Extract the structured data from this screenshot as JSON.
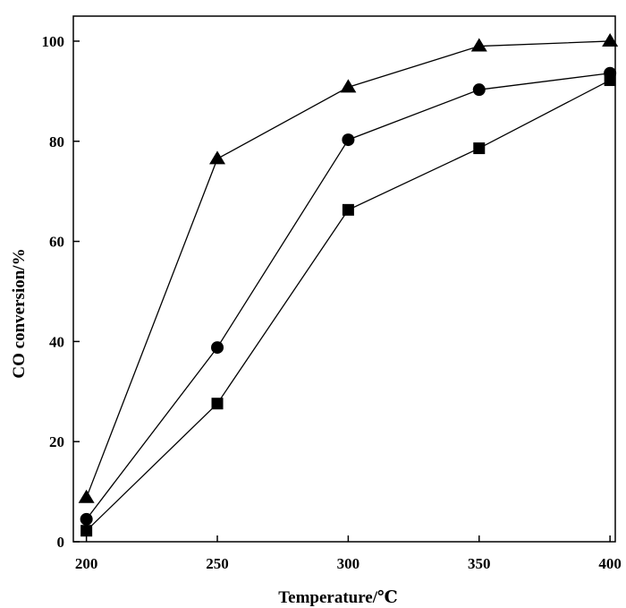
{
  "chart_data": {
    "type": "line",
    "title": "",
    "xlabel": "Temperature/℃",
    "ylabel": "CO conversion/%",
    "xlim": [
      195,
      402
    ],
    "ylim": [
      0,
      105
    ],
    "xticks": [
      200,
      250,
      300,
      350,
      400
    ],
    "yticks": [
      0,
      20,
      40,
      60,
      80,
      100
    ],
    "grid": false,
    "legend": "none",
    "colors": {
      "line": "#000000",
      "marker": "#000000"
    },
    "series": [
      {
        "marker": "triangle",
        "x": [
          200,
          250,
          300,
          350,
          400
        ],
        "y": [
          8.8,
          76.5,
          90.8,
          99.0,
          100.0
        ]
      },
      {
        "marker": "circle",
        "x": [
          200,
          250,
          300,
          350,
          400
        ],
        "y": [
          4.5,
          38.8,
          80.3,
          90.3,
          93.6
        ]
      },
      {
        "marker": "square",
        "x": [
          200,
          250,
          300,
          350,
          400
        ],
        "y": [
          2.2,
          27.6,
          66.3,
          78.6,
          92.2
        ]
      }
    ]
  }
}
